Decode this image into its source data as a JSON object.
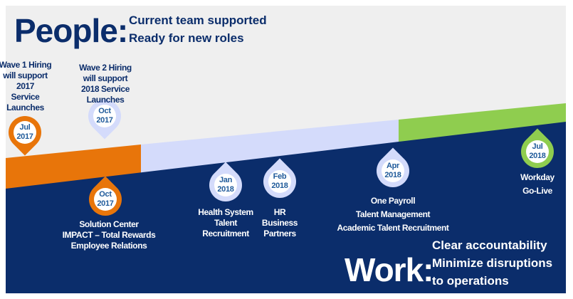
{
  "colors": {
    "navy": "#0b2d6b",
    "orange": "#e8750a",
    "lavender": "#d4dbfb",
    "green": "#8fcd4f",
    "background": "#efefef"
  },
  "people": {
    "title": "People:",
    "lines": [
      "Current team supported",
      "Ready for new roles"
    ]
  },
  "work": {
    "title": "Work:",
    "lines": [
      "Clear accountability",
      "Minimize disruptions",
      "to operations"
    ]
  },
  "milestones": [
    {
      "month": "Jul",
      "year": "2017",
      "color": "orange",
      "direction": "down",
      "label": [
        "Wave 1 Hiring",
        "will support",
        "2017",
        "Service",
        "Launches"
      ]
    },
    {
      "month": "Oct",
      "year": "2017",
      "color": "lavender",
      "direction": "down",
      "label": [
        "Wave 2 Hiring",
        "will support",
        "2018 Service",
        "Launches"
      ]
    },
    {
      "month": "Oct",
      "year": "2017",
      "color": "orange",
      "direction": "up",
      "label": [
        "Solution Center",
        "IMPACT – Total Rewards",
        "Employee Relations"
      ]
    },
    {
      "month": "Jan",
      "year": "2018",
      "color": "lavender",
      "direction": "up",
      "label": [
        "Health System",
        "Talent",
        "Recruitment"
      ]
    },
    {
      "month": "Feb",
      "year": "2018",
      "color": "lavender",
      "direction": "up",
      "label": [
        "HR",
        "Business",
        "Partners"
      ]
    },
    {
      "month": "Apr",
      "year": "2018",
      "color": "lavender",
      "direction": "up",
      "label": [
        "One Payroll",
        "Talent Management",
        "Academic Talent Recruitment"
      ]
    },
    {
      "month": "Jul",
      "year": "2018",
      "color": "green",
      "direction": "up",
      "label": [
        "Workday",
        "Go-Live"
      ]
    }
  ]
}
